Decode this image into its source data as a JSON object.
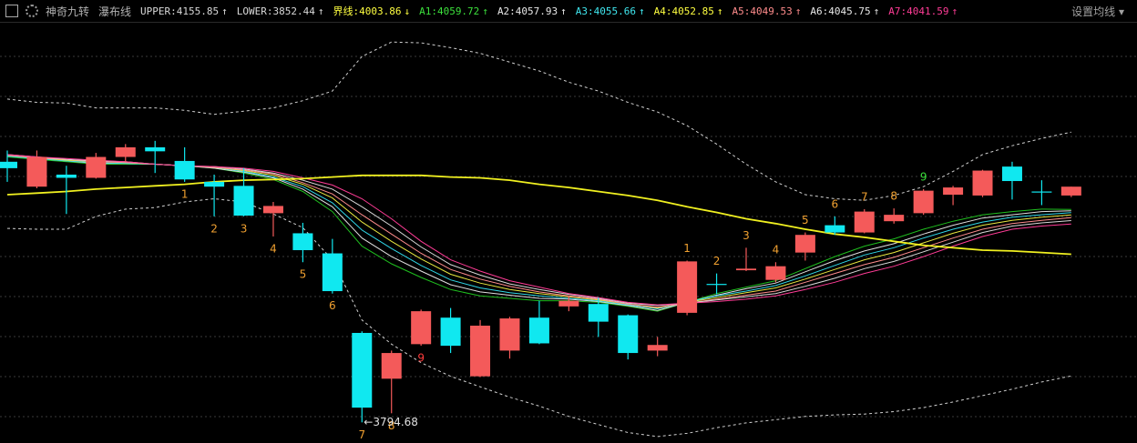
{
  "indicator_names": [
    "神奇九转",
    "瀑布线"
  ],
  "header_items": [
    {
      "text": "UPPER:4155.85",
      "arrow": "↑",
      "color": "#d8d8d8"
    },
    {
      "text": "LOWER:3852.44",
      "arrow": "↑",
      "color": "#d8d8d8"
    },
    {
      "text": "界线:4003.86",
      "arrow": "↓",
      "color": "#ffff40"
    },
    {
      "text": "A1:4059.72",
      "arrow": "↑",
      "color": "#3ce03c"
    },
    {
      "text": "A2:4057.93",
      "arrow": "↑",
      "color": "#e8e8e8"
    },
    {
      "text": "A3:4055.66",
      "arrow": "↑",
      "color": "#40e8f0"
    },
    {
      "text": "A4:4052.85",
      "arrow": "↑",
      "color": "#ffff40"
    },
    {
      "text": "A5:4049.53",
      "arrow": "↑",
      "color": "#ff8c8c"
    },
    {
      "text": "A6:4045.75",
      "arrow": "↑",
      "color": "#e8e8e8"
    },
    {
      "text": "A7:4041.59",
      "arrow": "↑",
      "color": "#ff3c96"
    }
  ],
  "settings_label": "设置均线",
  "chart_data": {
    "type": "candlestick",
    "ylim": [
      3769,
      4292
    ],
    "up_color": "#f45a5a",
    "down_color": "#10e8f0",
    "open": [
      4119,
      4088,
      4103,
      4099,
      4125,
      4137,
      4120,
      4094,
      4089,
      4055,
      4030,
      4005,
      3906,
      3849,
      3892,
      3925,
      3852,
      3884,
      3925,
      3939,
      3942,
      3928,
      3884,
      3931,
      3967,
      3984,
      3972,
      4006,
      4040,
      4031,
      4045,
      4055,
      4078,
      4077,
      4113,
      4082,
      4077
    ],
    "high": [
      4133,
      4133,
      4114,
      4130,
      4141,
      4145,
      4137,
      4103,
      4111,
      4069,
      4043,
      4023,
      3908,
      3884,
      3935,
      3937,
      3922,
      3926,
      3946,
      3952,
      3950,
      3929,
      3901,
      3996,
      3980,
      4012,
      3994,
      4031,
      4051,
      4060,
      4061,
      4085,
      4089,
      4109,
      4119,
      4096,
      4088
    ],
    "low": [
      4094,
      4086,
      4054,
      4098,
      4119,
      4105,
      4094,
      4051,
      4051,
      4026,
      3994,
      3955,
      3794.68,
      3806,
      3890,
      3881,
      3851,
      3874,
      3892,
      3933,
      3901,
      3873,
      3877,
      3928,
      3954,
      3983,
      3969,
      3996,
      4028,
      4030,
      4042,
      4053,
      4065,
      4075,
      4072,
      4065,
      4075
    ],
    "close": [
      4111,
      4125,
      4099,
      4125,
      4137,
      4132,
      4097,
      4088,
      4052,
      4064,
      4009,
      3958,
      3813,
      3881,
      3933,
      3890,
      3915,
      3924,
      3893,
      3946,
      3920,
      3881,
      3891,
      3995,
      3966,
      3986,
      3989,
      4028,
      4031,
      4057,
      4053,
      4083,
      4087,
      4108,
      4095,
      4081,
      4088
    ],
    "low_marker": "←3794.68",
    "nine_below": {
      "color": "#f0a030",
      "last_color": "#ff3c3c",
      "labels": [
        null,
        null,
        null,
        null,
        null,
        null,
        "1",
        "2",
        "3",
        "4",
        "5",
        "6",
        "7",
        "8",
        "9",
        null,
        null,
        null,
        null,
        null,
        null,
        null,
        null,
        null,
        null,
        null,
        null,
        null,
        null,
        null,
        null,
        null,
        null,
        null,
        null,
        null,
        null
      ]
    },
    "nine_above": {
      "color": "#f0a030",
      "last_color": "#3ce03c",
      "labels": [
        null,
        null,
        null,
        null,
        null,
        null,
        null,
        null,
        null,
        null,
        null,
        null,
        null,
        null,
        null,
        null,
        null,
        null,
        null,
        null,
        null,
        null,
        null,
        "1",
        "2",
        "3",
        "4",
        "5",
        "6",
        "7",
        "8",
        "9",
        null,
        null,
        null,
        null,
        null
      ]
    },
    "series": [
      {
        "color": "#d0d0d0",
        "dashed": true,
        "values": [
          4197,
          4193,
          4192,
          4186,
          4186,
          4186,
          4183,
          4178,
          4182,
          4186,
          4195,
          4207,
          4250,
          4268,
          4267,
          4261,
          4254,
          4243,
          4232,
          4218,
          4207,
          4193,
          4181,
          4164,
          4141,
          4116,
          4094,
          4078,
          4073,
          4071,
          4077,
          4088,
          4107,
          4128,
          4139,
          4148,
          4155.85
        ]
      },
      {
        "color": "#d0d0d0",
        "dashed": true,
        "values": [
          4036,
          4035,
          4035,
          4051,
          4060,
          4062,
          4069,
          4073,
          4069,
          4054,
          4037,
          3997,
          3922,
          3892,
          3869,
          3852,
          3839,
          3826,
          3815,
          3802,
          3792,
          3782,
          3777,
          3781,
          3788,
          3794,
          3798,
          3802,
          3804,
          3805,
          3808,
          3813,
          3820,
          3828,
          3836,
          3845,
          3852.44
        ]
      },
      {
        "color": "#1fbf1f",
        "values": [
          4125,
          4122,
          4119,
          4116,
          4116,
          4116,
          4114,
          4111,
          4105,
          4097,
          4082,
          4057,
          4014,
          3992,
          3975,
          3960,
          3952,
          3949,
          3946,
          3946,
          3944,
          3939,
          3933,
          3944,
          3955,
          3963,
          3971,
          3986,
          4001,
          4014,
          4023,
          4035,
          4045,
          4053,
          4057,
          4060,
          4059.72
        ]
      },
      {
        "color": "#e0e0e0",
        "values": [
          4126,
          4123,
          4120,
          4117,
          4117,
          4116,
          4114,
          4111,
          4106,
          4099,
          4085,
          4063,
          4024,
          4001,
          3983,
          3966,
          3957,
          3953,
          3949,
          3948,
          3945,
          3940,
          3934,
          3944,
          3953,
          3961,
          3968,
          3982,
          3996,
          4008,
          4017,
          4029,
          4040,
          4049,
          4053,
          4057,
          4057.93
        ]
      },
      {
        "color": "#30d8e8",
        "values": [
          4126,
          4123,
          4120,
          4118,
          4117,
          4116,
          4114,
          4112,
          4107,
          4100,
          4088,
          4068,
          4034,
          4011,
          3990,
          3972,
          3962,
          3956,
          3952,
          3949,
          3946,
          3941,
          3936,
          3944,
          3952,
          3958,
          3965,
          3977,
          3990,
          4003,
          4012,
          4024,
          4035,
          4044,
          4050,
          4053,
          4055.66
        ]
      },
      {
        "color": "#e8e840",
        "values": [
          4127,
          4124,
          4121,
          4119,
          4118,
          4116,
          4114,
          4112,
          4108,
          4102,
          4091,
          4074,
          4044,
          4020,
          3998,
          3979,
          3968,
          3960,
          3955,
          3951,
          3947,
          3942,
          3937,
          3944,
          3950,
          3956,
          3962,
          3973,
          3985,
          3997,
          4006,
          4018,
          4030,
          4040,
          4046,
          4050,
          4052.85
        ]
      },
      {
        "color": "#ff8c8c",
        "values": [
          4127,
          4124,
          4122,
          4119,
          4118,
          4116,
          4114,
          4112,
          4109,
          4104,
          4093,
          4079,
          4053,
          4029,
          4005,
          3985,
          3973,
          3964,
          3957,
          3952,
          3948,
          3942,
          3938,
          3943,
          3948,
          3953,
          3958,
          3969,
          3980,
          3991,
          4000,
          4012,
          4024,
          4035,
          4042,
          4046,
          4049.53
        ]
      },
      {
        "color": "#d8d8d8",
        "values": [
          4128,
          4125,
          4122,
          4120,
          4119,
          4116,
          4114,
          4113,
          4110,
          4105,
          4096,
          4085,
          4063,
          4039,
          4013,
          3991,
          3978,
          3967,
          3960,
          3954,
          3949,
          3943,
          3940,
          3943,
          3947,
          3951,
          3955,
          3964,
          3974,
          3986,
          3995,
          4007,
          4019,
          4031,
          4039,
          4043,
          4045.75
        ]
      },
      {
        "color": "#ff3c96",
        "values": [
          4128,
          4125,
          4123,
          4121,
          4119,
          4116,
          4114,
          4113,
          4111,
          4107,
          4099,
          4090,
          4073,
          4048,
          4020,
          3997,
          3983,
          3971,
          3963,
          3955,
          3950,
          3944,
          3941,
          3943,
          3945,
          3948,
          3952,
          3960,
          3969,
          3980,
          3989,
          4001,
          4014,
          4026,
          4035,
          4039,
          4041.59
        ]
      },
      {
        "color": "#f0f020",
        "width": 1.8,
        "values": [
          4078,
          4080,
          4082,
          4085,
          4087,
          4089,
          4091,
          4094,
          4096,
          4097,
          4098,
          4100,
          4102,
          4102,
          4102,
          4100,
          4099,
          4096,
          4091,
          4087,
          4082,
          4077,
          4071,
          4063,
          4056,
          4048,
          4042,
          4035,
          4029,
          4025,
          4020,
          4015,
          4012,
          4009,
          4008,
          4006,
          4003.86
        ]
      }
    ]
  }
}
